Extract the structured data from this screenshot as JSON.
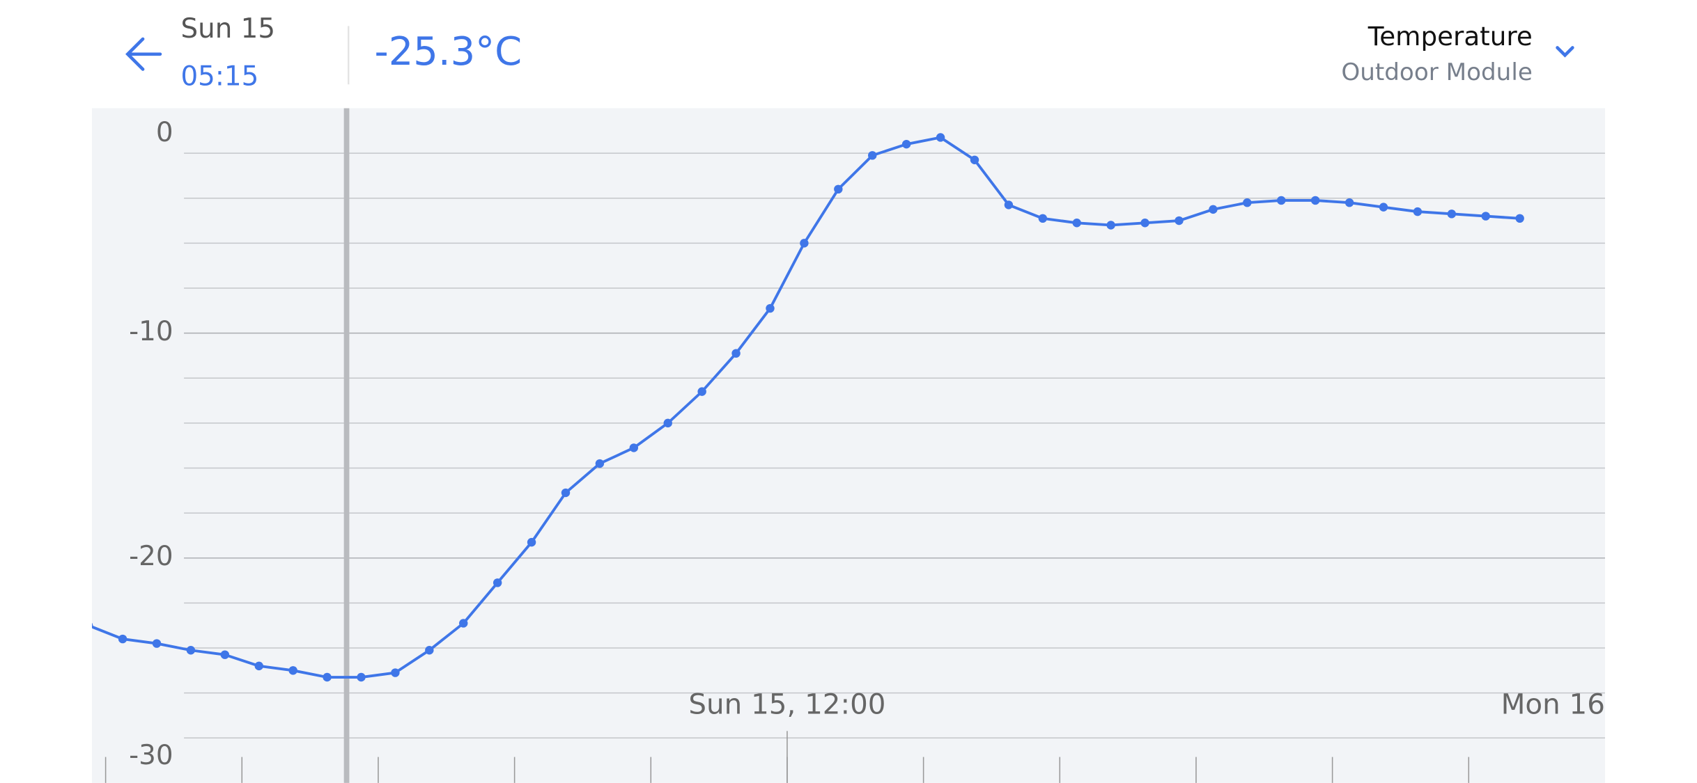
{
  "header": {
    "date": "Sun 15",
    "time": "05:15",
    "reading": "-25.3°C",
    "metric": "Temperature",
    "module": "Outdoor Module"
  },
  "chart_data": {
    "type": "line",
    "x": [
      1.75,
      2.25,
      2.75,
      3.25,
      3.75,
      4.25,
      4.75,
      5.25,
      5.75,
      6.25,
      6.75,
      7.25,
      7.75,
      8.25,
      8.75,
      9.25,
      9.75,
      10.25,
      10.75,
      11.25,
      11.75,
      12.25,
      12.75,
      13.25,
      13.75,
      14.25,
      14.75,
      15.25,
      15.75,
      16.25,
      16.75,
      17.25,
      17.75,
      18.25,
      18.75,
      19.25,
      19.75,
      20.25,
      20.75,
      21.25,
      21.75,
      22.25,
      22.75
    ],
    "series": [
      {
        "name": "Temperature",
        "color": "#3f76e8",
        "values": [
          -23.0,
          -23.6,
          -23.8,
          -24.1,
          -24.3,
          -24.8,
          -25.0,
          -25.3,
          -25.3,
          -25.1,
          -24.1,
          -22.9,
          -21.1,
          -19.3,
          -17.1,
          -15.8,
          -15.1,
          -14.0,
          -12.6,
          -10.9,
          -8.9,
          -6.0,
          -3.6,
          -2.1,
          -1.6,
          -1.3,
          -2.3,
          -4.3,
          -4.9,
          -5.1,
          -5.2,
          -5.1,
          -5.0,
          -4.5,
          -4.2,
          -4.1,
          -4.1,
          -4.2,
          -4.4,
          -4.6,
          -4.7,
          -4.8,
          -4.9
        ]
      }
    ],
    "xlim": [
      1.8,
      24
    ],
    "xticks": [
      2,
      4,
      6,
      8,
      10,
      12,
      14,
      16,
      18,
      20,
      22
    ],
    "xlabels": [
      {
        "value": 12,
        "label": "Sun 15, 12:00"
      },
      {
        "value": 24,
        "label": "Mon 16"
      }
    ],
    "ylim": [
      -30,
      0
    ],
    "yticks": [
      0,
      -10,
      -20,
      -30
    ],
    "ygrid": [
      -2,
      -4,
      -6,
      -8,
      -10,
      -12,
      -14,
      -16,
      -18,
      -20,
      -22,
      -24,
      -26,
      -28
    ],
    "selected": 7,
    "grid": true
  }
}
